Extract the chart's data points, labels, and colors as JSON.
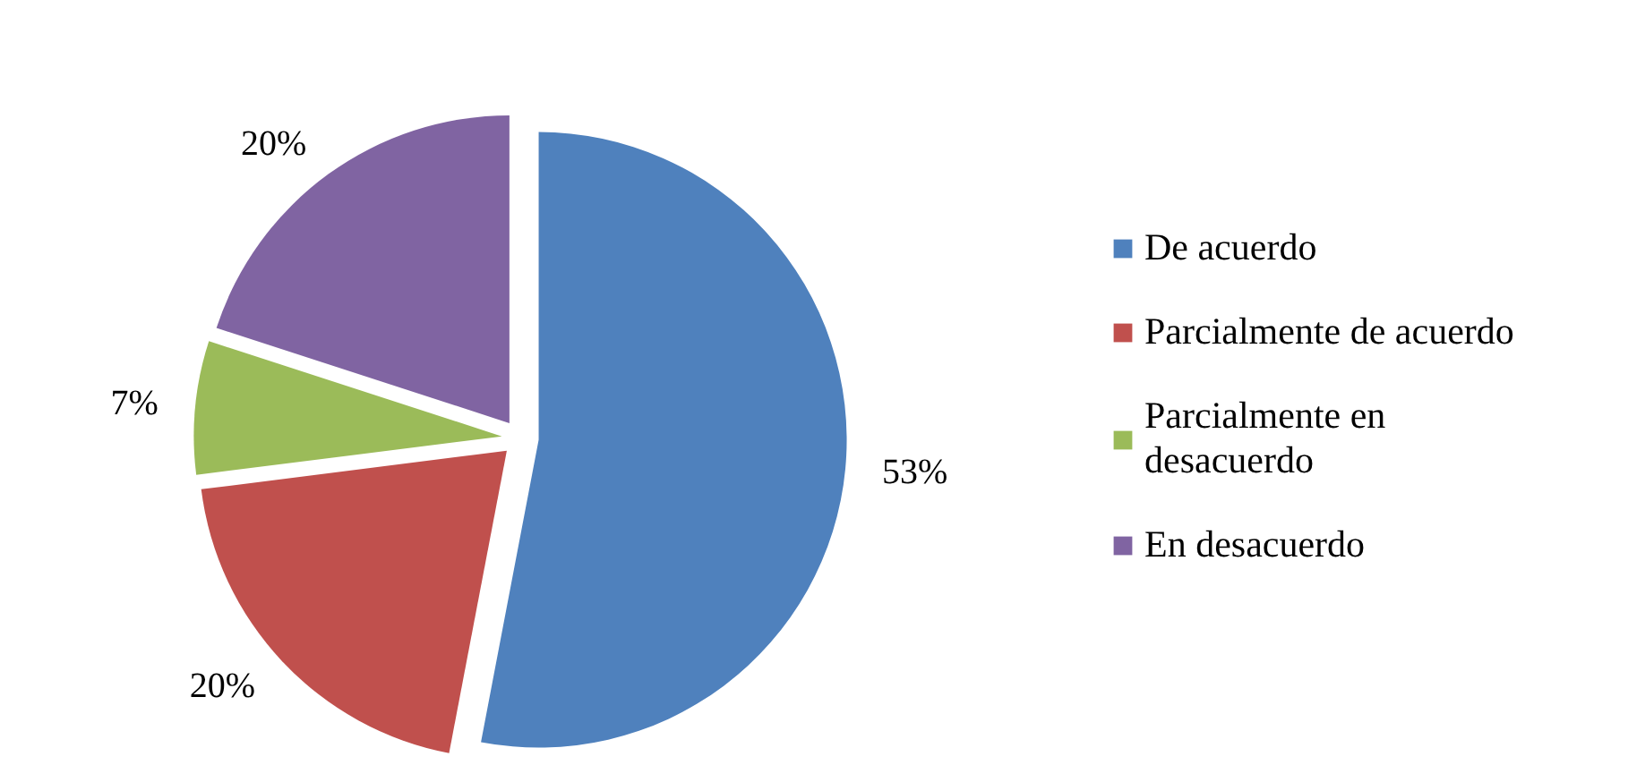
{
  "chart_data": {
    "type": "pie",
    "categories": [
      "De acuerdo",
      "Parcialmente de acuerdo",
      "Parcialmente en desacuerdo",
      "En desacuerdo"
    ],
    "values": [
      53,
      20,
      7,
      20
    ],
    "colors": [
      "#4f81bd",
      "#c0504d",
      "#9bbb59",
      "#8064a2"
    ],
    "value_labels": [
      "53%",
      "20%",
      "7%",
      "20%"
    ],
    "legend": "right"
  }
}
